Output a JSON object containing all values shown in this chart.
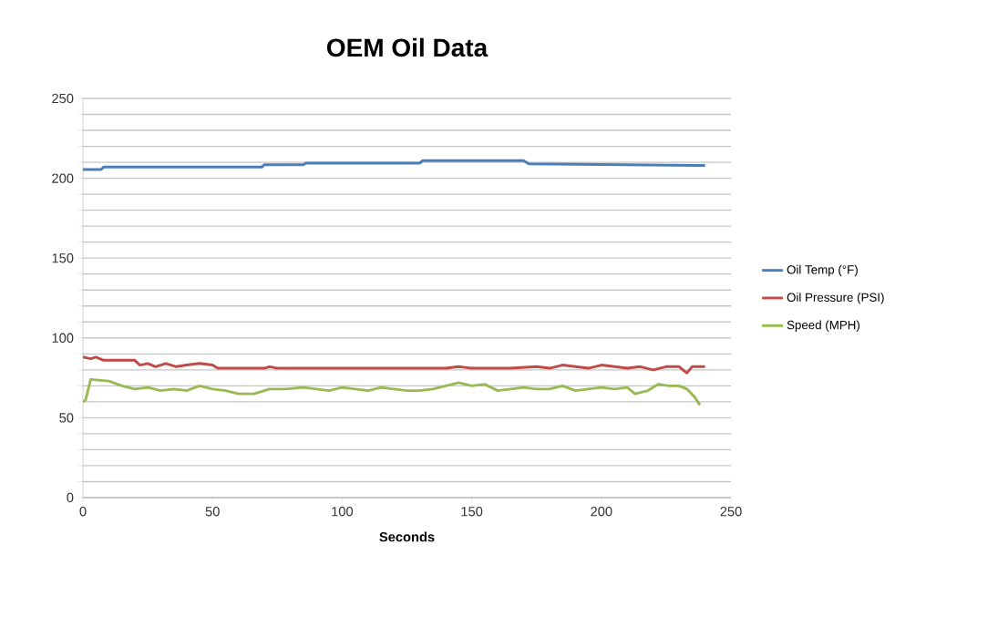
{
  "chart_data": {
    "type": "line",
    "title": "OEM Oil Data",
    "xlabel": "Seconds",
    "xlim": [
      0,
      250
    ],
    "xticks": [
      0,
      50,
      100,
      150,
      200,
      250
    ],
    "ylim": [
      0,
      250
    ],
    "yticks": [
      0,
      {
        "value": 10,
        "label": null
      },
      {
        "value": 20,
        "label": null
      },
      {
        "value": 30,
        "label": null
      },
      {
        "value": 40,
        "label": null
      },
      50,
      {
        "value": 60,
        "label": null
      },
      {
        "value": 70,
        "label": null
      },
      {
        "value": 80,
        "label": null
      },
      {
        "value": 90,
        "label": null
      },
      100,
      {
        "value": 110,
        "label": null
      },
      {
        "value": 120,
        "label": null
      },
      {
        "value": 130,
        "label": null
      },
      {
        "value": 140,
        "label": null
      },
      150,
      {
        "value": 160,
        "label": null
      },
      {
        "value": 170,
        "label": null
      },
      {
        "value": 180,
        "label": null
      },
      {
        "value": 190,
        "label": null
      },
      200,
      {
        "value": 210,
        "label": null
      },
      {
        "value": 220,
        "label": null
      },
      {
        "value": 230,
        "label": null
      },
      {
        "value": 240,
        "label": null
      },
      250
    ],
    "grid": "y",
    "legend": "right",
    "line_style": "solid",
    "series": [
      {
        "name": "Oil Temp (°F)",
        "color": "#4a7ebb",
        "x": [
          0,
          7,
          8,
          69,
          70,
          85,
          86,
          130,
          131,
          170,
          172,
          240
        ],
        "values": [
          205.5,
          205.5,
          207,
          207,
          208.5,
          208.5,
          209.5,
          209.5,
          211,
          211,
          209,
          208
        ]
      },
      {
        "name": "Oil Pressure (PSI)",
        "color": "#be4b48",
        "x": [
          0,
          3,
          5,
          8,
          10,
          20,
          22,
          25,
          28,
          32,
          36,
          40,
          45,
          50,
          52,
          70,
          72,
          75,
          100,
          120,
          140,
          145,
          150,
          155,
          165,
          175,
          180,
          185,
          190,
          195,
          200,
          205,
          210,
          215,
          220,
          225,
          230,
          233,
          235,
          240
        ],
        "values": [
          88,
          87,
          88,
          86,
          86,
          86,
          83,
          84,
          82,
          84,
          82,
          83,
          84,
          83,
          81,
          81,
          82,
          81,
          81,
          81,
          81,
          82,
          81,
          81,
          81,
          82,
          81,
          83,
          82,
          81,
          83,
          82,
          81,
          82,
          80,
          82,
          82,
          78,
          82,
          82
        ]
      },
      {
        "name": "Speed (MPH)",
        "color": "#98b954",
        "x": [
          0,
          1,
          3,
          10,
          15,
          20,
          25,
          30,
          35,
          40,
          45,
          50,
          55,
          60,
          66,
          72,
          78,
          85,
          90,
          95,
          100,
          105,
          110,
          115,
          120,
          125,
          130,
          135,
          140,
          145,
          150,
          155,
          160,
          165,
          170,
          175,
          180,
          185,
          190,
          195,
          200,
          205,
          210,
          213,
          218,
          222,
          226,
          230,
          233,
          236,
          238
        ],
        "values": [
          60,
          61,
          74,
          73,
          70,
          68,
          69,
          67,
          68,
          67,
          70,
          68,
          67,
          65,
          65,
          68,
          68,
          69,
          68,
          67,
          69,
          68,
          67,
          69,
          68,
          67,
          67,
          68,
          70,
          72,
          70,
          71,
          67,
          68,
          69,
          68,
          68,
          70,
          67,
          68,
          69,
          68,
          69,
          65,
          67,
          71,
          70,
          70,
          68,
          63,
          58
        ]
      }
    ]
  }
}
